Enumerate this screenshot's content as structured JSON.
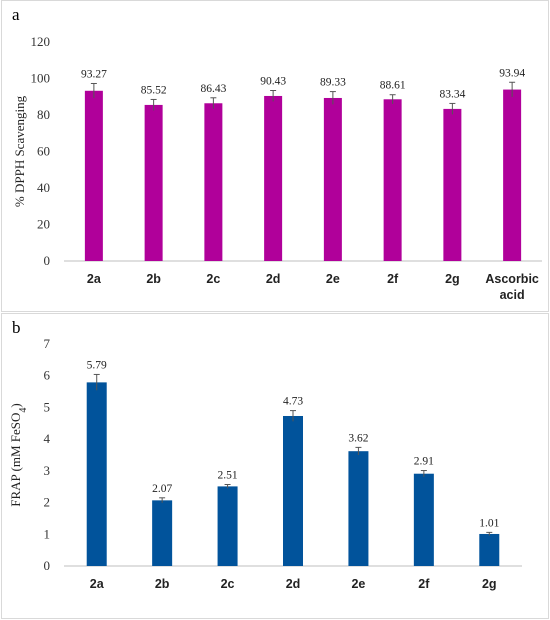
{
  "chart_data": [
    {
      "panel": "a",
      "type": "bar",
      "ylabel": "% DPPH Scavenging",
      "ylim": [
        0,
        120
      ],
      "yticks": [
        0,
        20,
        40,
        60,
        80,
        100,
        120
      ],
      "categories": [
        "2a",
        "2b",
        "2c",
        "2d",
        "2e",
        "2f",
        "2g",
        "Ascorbic\nacid"
      ],
      "values": [
        93.27,
        85.52,
        86.43,
        90.43,
        89.33,
        88.61,
        83.34,
        93.94
      ],
      "value_labels": [
        "93.27",
        "85.52",
        "86.43",
        "90.43",
        "89.33",
        "88.61",
        "83.34",
        "93.94"
      ],
      "errors": [
        4,
        3,
        3,
        3,
        3.5,
        2.5,
        3,
        4
      ],
      "grid": false,
      "color": "#B0009A"
    },
    {
      "panel": "b",
      "type": "bar",
      "ylabel": "FRAP (mM FeSO4)",
      "ylim": [
        0,
        7
      ],
      "yticks": [
        0,
        1,
        2,
        3,
        4,
        5,
        6,
        7
      ],
      "categories": [
        "2a",
        "2b",
        "2c",
        "2d",
        "2e",
        "2f",
        "2g"
      ],
      "values": [
        5.79,
        2.07,
        2.51,
        4.73,
        3.62,
        2.91,
        1.01
      ],
      "value_labels": [
        "5.79",
        "2.07",
        "2.51",
        "4.73",
        "3.62",
        "2.91",
        "1.01"
      ],
      "errors": [
        0.25,
        0.08,
        0.06,
        0.17,
        0.12,
        0.1,
        0.05
      ],
      "grid": false,
      "color": "#01539B"
    }
  ],
  "panels": {
    "a": "a",
    "b": "b"
  }
}
